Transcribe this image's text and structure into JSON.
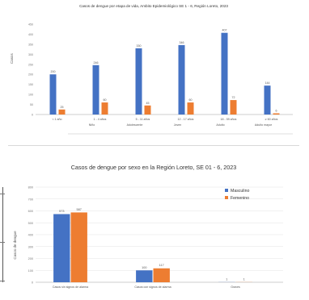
{
  "chart_data": [
    {
      "type": "bar",
      "title": "Casos de dengue por etapa de vida, Ambito Epidemiológico SE 1 - 6, Región Loreto, 2023",
      "xlabel": "",
      "ylabel": "Casos",
      "ylim": [
        0,
        450
      ],
      "categories": [
        "< 1 año",
        "1 - 4 años",
        "5 - 11 años",
        "12 - 17 años",
        "18 - 59 años",
        "≥ 60 años"
      ],
      "groups": [
        "Niño",
        "Adolescente",
        "Joven",
        "Adulto",
        "Adulto mayor"
      ],
      "series": [
        {
          "values": [
            200,
            246,
            330,
            346,
            407,
            144
          ]
        },
        {
          "values": [
            25,
            60,
            45,
            60,
            72,
            6
          ]
        }
      ],
      "bar_labels": [
        [
          "200",
          "246",
          "330",
          "346",
          "407",
          "144"
        ],
        [
          "25",
          "60",
          "45",
          "60",
          "72",
          "6"
        ]
      ],
      "grid": false,
      "colors": [
        "#4472c4",
        "#ed7d31"
      ]
    },
    {
      "type": "bar",
      "title": "Casos de dengue por sexo en la Región Loreto, SE 01 - 6, 2023",
      "xlabel": "",
      "ylabel": "Casos de dengue",
      "ylim": [
        0,
        800
      ],
      "y_ticks": [
        0,
        100,
        200,
        300,
        400,
        500,
        600,
        700,
        800
      ],
      "categories": [
        "Casos sin signos de alarma",
        "Casos con signos de alarma",
        "Graves"
      ],
      "series": [
        {
          "name": "Masculino",
          "values": [
            573,
            100,
            1
          ]
        },
        {
          "name": "Femenino",
          "values": [
            587,
            117,
            1
          ]
        }
      ],
      "bar_labels": [
        [
          "573",
          "100",
          "1"
        ],
        [
          "587",
          "117",
          "1"
        ]
      ],
      "grid": true,
      "legend_position": "top-right",
      "colors": [
        "#4472c4",
        "#ed7d31"
      ]
    }
  ]
}
